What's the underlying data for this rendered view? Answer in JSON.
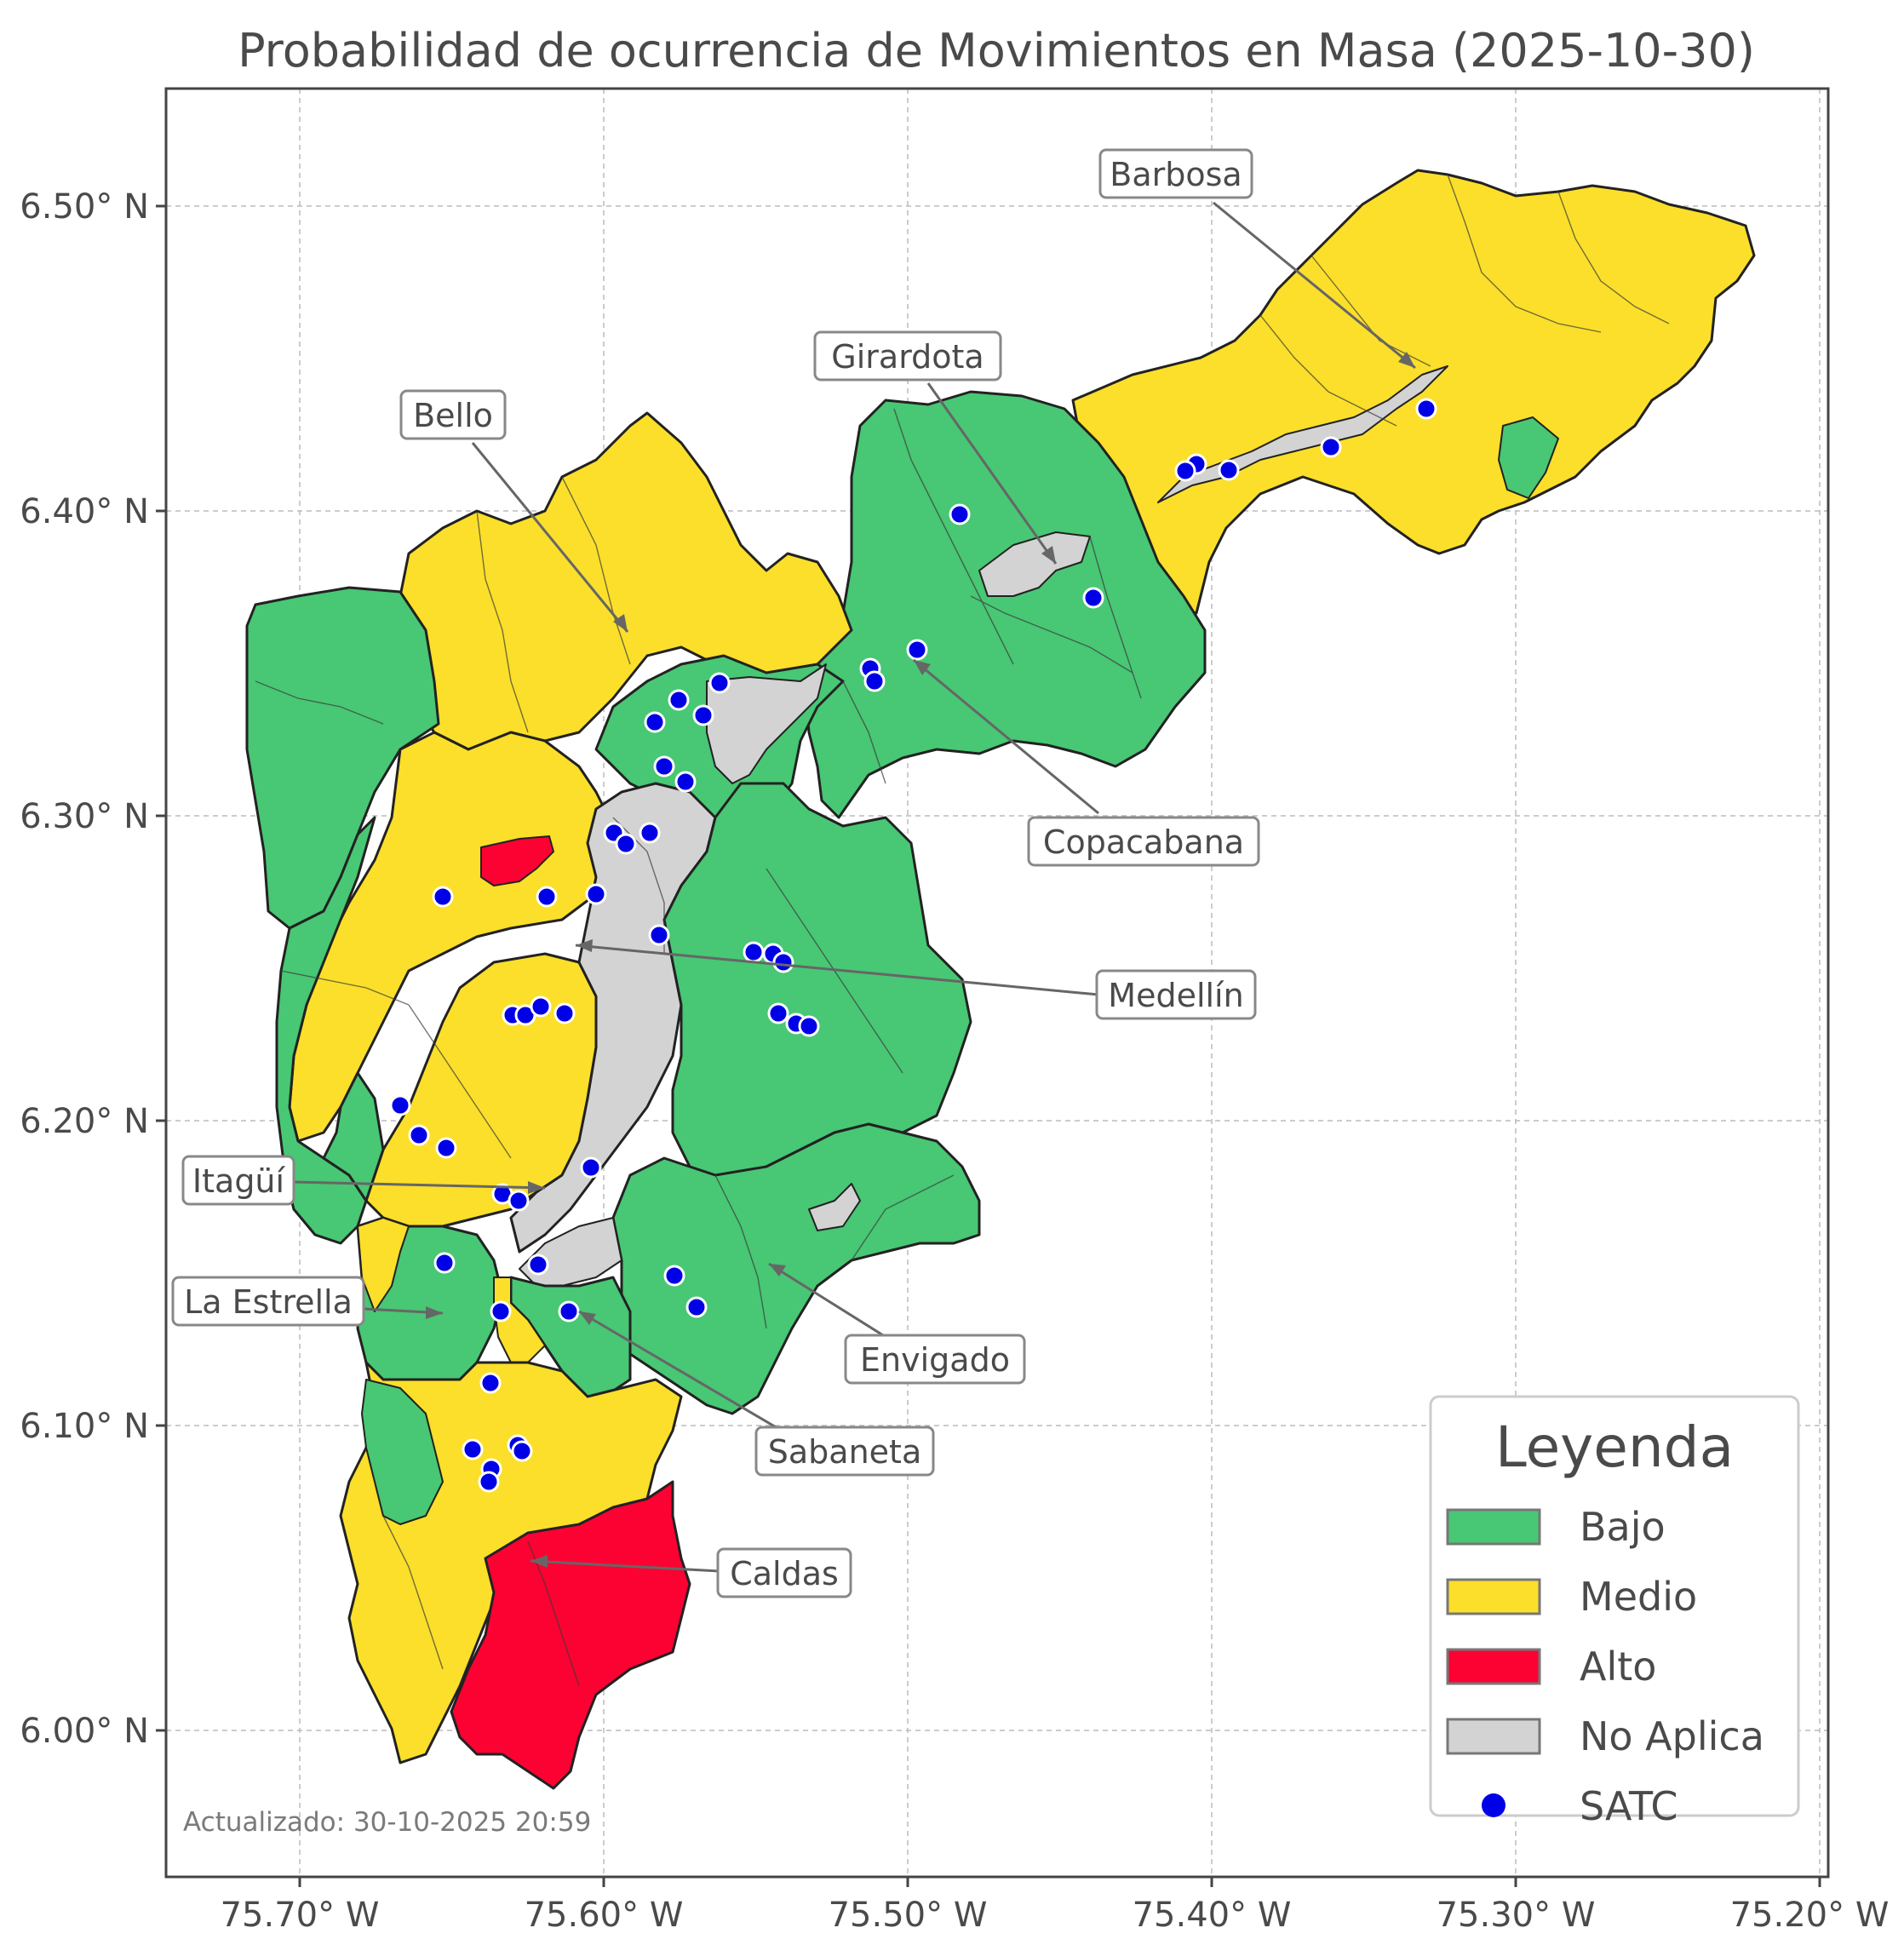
{
  "title": "Probabilidad de ocurrencia de Movimientos en Masa (2025-10-30)",
  "axes": {
    "x_ticks": [
      "75.70° W",
      "75.60° W",
      "75.50° W",
      "75.40° W",
      "75.30° W",
      "75.20° W"
    ],
    "y_ticks": [
      "6.50° N",
      "6.40° N",
      "6.30° N",
      "6.20° N",
      "6.10° N",
      "6.00° N"
    ],
    "grid": true
  },
  "callouts": [
    {
      "id": "barbosa",
      "label": "Barbosa"
    },
    {
      "id": "girardota",
      "label": "Girardota"
    },
    {
      "id": "bello",
      "label": "Bello"
    },
    {
      "id": "copacabana",
      "label": "Copacabana"
    },
    {
      "id": "medellin",
      "label": "Medellín"
    },
    {
      "id": "itagui",
      "label": "Itagüí"
    },
    {
      "id": "laestrella",
      "label": "La Estrella"
    },
    {
      "id": "envigado",
      "label": "Envigado"
    },
    {
      "id": "sabaneta",
      "label": "Sabaneta"
    },
    {
      "id": "caldas",
      "label": "Caldas"
    }
  ],
  "legend": {
    "title": "Leyenda",
    "items": [
      {
        "label": "Bajo",
        "color": "#48c774"
      },
      {
        "label": "Medio",
        "color": "#fbdf2a"
      },
      {
        "label": "Alto",
        "color": "#fb0232"
      },
      {
        "label": "No Aplica",
        "color": "#d3d3d3"
      },
      {
        "label": "SATC",
        "color": "#0000e6"
      }
    ]
  },
  "colors": {
    "bajo": "#48c774",
    "medio": "#fbdf2a",
    "alto": "#fb0232",
    "no_aplica": "#d3d3d3",
    "satc": "#0000e6"
  },
  "updated": "Actualizado: 30-10-2025 20:59"
}
